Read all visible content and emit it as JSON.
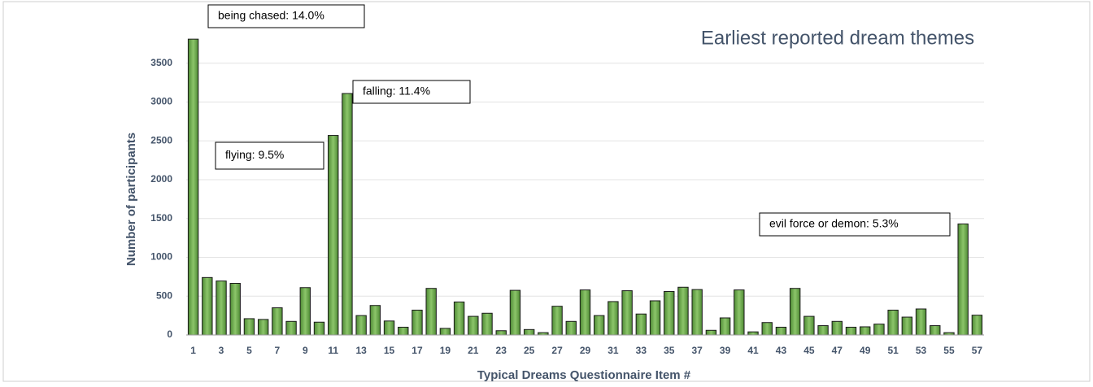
{
  "chart_data": {
    "type": "bar",
    "title": "Earliest reported dream themes",
    "x_label": "Typical Dreams Questionnaire Item #",
    "y_label": "Number of participants",
    "categories": [
      1,
      null,
      3,
      null,
      5,
      null,
      7,
      null,
      9,
      null,
      11,
      null,
      13,
      null,
      15,
      null,
      17,
      null,
      19,
      null,
      21,
      null,
      23,
      null,
      25,
      null,
      27,
      null,
      29,
      null,
      31,
      null,
      33,
      null,
      35,
      null,
      37,
      null,
      39,
      null,
      41,
      null,
      43,
      null,
      45,
      null,
      47,
      null,
      49,
      null,
      51,
      null,
      53,
      null,
      55,
      null,
      57
    ],
    "values": [
      3810,
      740,
      695,
      665,
      210,
      200,
      350,
      175,
      610,
      165,
      2570,
      3110,
      250,
      380,
      180,
      100,
      320,
      600,
      85,
      425,
      240,
      280,
      55,
      575,
      70,
      30,
      370,
      175,
      580,
      250,
      430,
      570,
      270,
      440,
      560,
      615,
      585,
      60,
      220,
      580,
      40,
      160,
      100,
      600,
      240,
      120,
      175,
      100,
      105,
      140,
      320,
      230,
      335,
      120,
      30,
      1430,
      255
    ],
    "color": "#77b255",
    "ylim": [
      0,
      4000
    ],
    "yticks": [
      0,
      500,
      1000,
      1500,
      2000,
      2500,
      3000,
      3500
    ],
    "grid": true,
    "annotations": [
      "being chased: 14.0%",
      "falling: 11.4%",
      "flying: 9.5%",
      "evil force or demon: 5.3%"
    ]
  }
}
